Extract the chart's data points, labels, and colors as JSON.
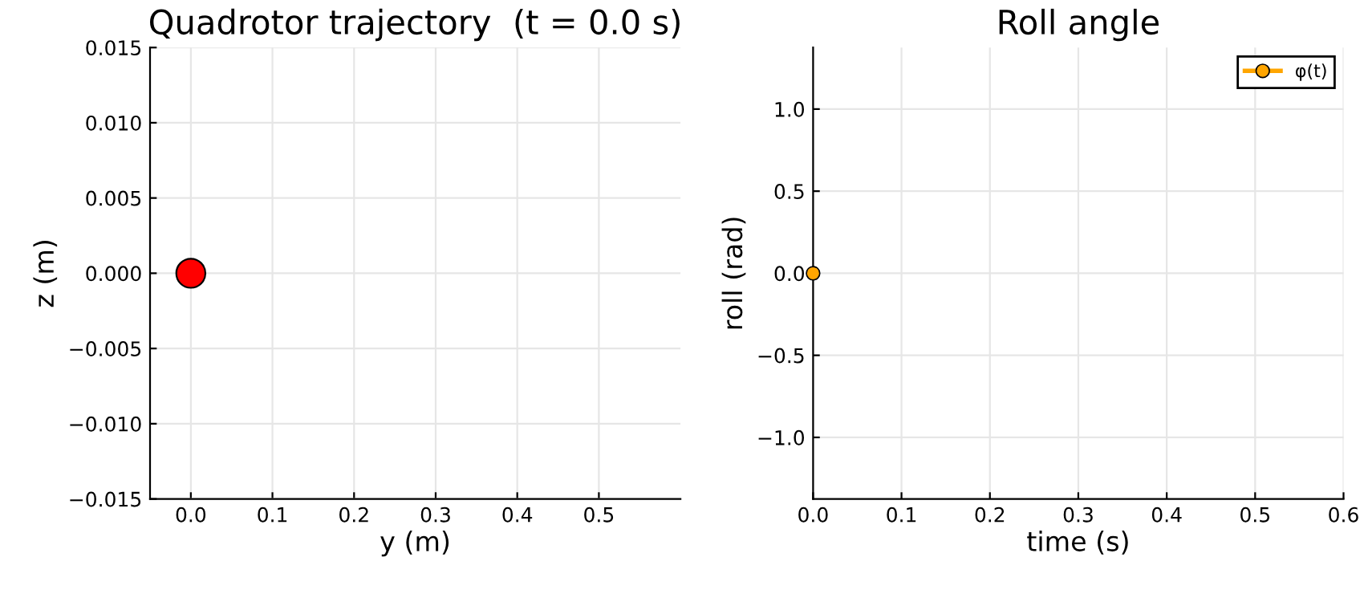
{
  "chart_data": [
    {
      "type": "scatter",
      "title": "Quadrotor trajectory  (t = 0.0 s)",
      "xlabel": "y (m)",
      "ylabel": "z (m)",
      "x": [
        0.0
      ],
      "series": [
        {
          "color": "#ff0000",
          "values": [
            0.0
          ]
        }
      ],
      "xlim": [
        -0.05,
        0.6
      ],
      "xticks": [
        {
          "value": 0,
          "label": "0.0"
        },
        0.1,
        0.2,
        0.3,
        0.4,
        0.5
      ],
      "ylim": [
        -0.015,
        0.015
      ],
      "yticks": [
        {
          "value": -0.015,
          "label": "−0.015"
        },
        {
          "value": -0.01,
          "label": "−0.010"
        },
        {
          "value": -0.005,
          "label": "−0.005"
        },
        {
          "value": 0,
          "label": "0.000"
        },
        0.005,
        {
          "value": 0.01,
          "label": "0.010"
        },
        0.015
      ],
      "grid": true,
      "marker": "circle"
    },
    {
      "type": "line",
      "title": "Roll angle",
      "xlabel": "time (s)",
      "ylabel": "roll (rad)",
      "x": [
        0.0
      ],
      "series": [
        {
          "name": "φ(t)",
          "color": "#ffa500",
          "values": [
            0.0
          ]
        }
      ],
      "xlim": [
        0,
        0.6
      ],
      "xticks": [
        {
          "value": 0,
          "label": "0.0"
        },
        0.1,
        0.2,
        0.3,
        0.4,
        0.5,
        0.6
      ],
      "ylim": [
        -1.375,
        1.375
      ],
      "yticks": [
        {
          "value": -1,
          "label": "−1.0"
        },
        {
          "value": -0.5,
          "label": "−0.5"
        },
        {
          "value": 0,
          "label": "0.0"
        },
        0.5,
        {
          "value": 1,
          "label": "1.0"
        }
      ],
      "grid": true,
      "legend": "top right",
      "marker": "circle",
      "line_style": "solid"
    }
  ]
}
